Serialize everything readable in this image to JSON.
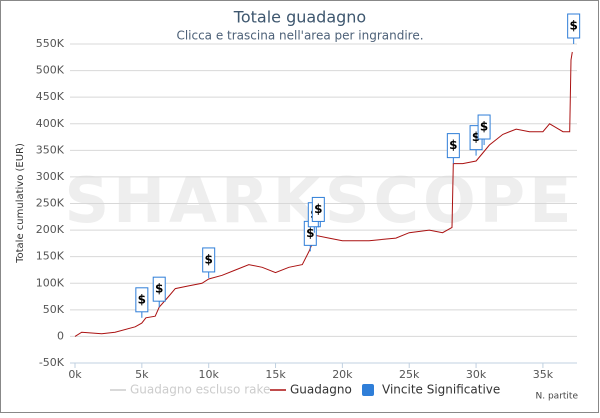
{
  "chart_data": {
    "type": "line",
    "title": "Totale guadagno",
    "subtitle": "Clicca e trascina nell'area per ingrandire.",
    "y_label": "Totale cumulativo (EUR)",
    "x_label": "N. partite",
    "watermark": "SHARKSCOPE",
    "flag_label": "$",
    "xlim": [
      0,
      37400
    ],
    "ylim": [
      -50000,
      550000
    ],
    "xticks": [
      {
        "value": 0,
        "label": "0k"
      },
      {
        "value": 5000,
        "label": "5k"
      },
      {
        "value": 10000,
        "label": "10k"
      },
      {
        "value": 15000,
        "label": "15k"
      },
      {
        "value": 20000,
        "label": "20k"
      },
      {
        "value": 25000,
        "label": "25k"
      },
      {
        "value": 30000,
        "label": "30k"
      },
      {
        "value": 35000,
        "label": "35k"
      }
    ],
    "yticks": [
      {
        "value": -50000,
        "label": "-50K"
      },
      {
        "value": 0,
        "label": "0"
      },
      {
        "value": 50000,
        "label": "50K"
      },
      {
        "value": 100000,
        "label": "100K"
      },
      {
        "value": 150000,
        "label": "150K"
      },
      {
        "value": 200000,
        "label": "200K"
      },
      {
        "value": 250000,
        "label": "250K"
      },
      {
        "value": 300000,
        "label": "300K"
      },
      {
        "value": 350000,
        "label": "350K"
      },
      {
        "value": 400000,
        "label": "400K"
      },
      {
        "value": 450000,
        "label": "450K"
      },
      {
        "value": 500000,
        "label": "500K"
      },
      {
        "value": 550000,
        "label": "550K"
      }
    ],
    "grid": true,
    "legend": "bottom",
    "series": [
      {
        "name": "Guadagno escluso rake",
        "color": "#cccccc",
        "hidden": true,
        "x": [],
        "values": []
      },
      {
        "name": "Guadagno",
        "color": "#aa1111",
        "x": [
          0,
          500,
          2000,
          3000,
          4500,
          5000,
          5300,
          6000,
          6300,
          7000,
          7500,
          8500,
          9500,
          10000,
          11000,
          12000,
          13000,
          14000,
          15000,
          16000,
          17000,
          17500,
          18000,
          19000,
          20000,
          22000,
          24000,
          25000,
          26500,
          27500,
          28200,
          28300,
          29000,
          30000,
          30500,
          31000,
          32000,
          33000,
          34000,
          35000,
          35500,
          36500,
          37000,
          37100,
          37200
        ],
        "values": [
          0,
          8000,
          5000,
          8000,
          18000,
          25000,
          35000,
          38000,
          55000,
          75000,
          90000,
          95000,
          100000,
          108000,
          115000,
          125000,
          135000,
          130000,
          120000,
          130000,
          135000,
          160000,
          190000,
          185000,
          180000,
          180000,
          185000,
          195000,
          200000,
          195000,
          205000,
          325000,
          325000,
          330000,
          345000,
          360000,
          380000,
          390000,
          385000,
          385000,
          400000,
          385000,
          385000,
          520000,
          535000
        ]
      },
      {
        "name": "Vincite Significative",
        "color": "#2f7ed8",
        "marker": "flag",
        "x": [
          5000,
          6300,
          10000,
          17600,
          17900,
          18200,
          28300,
          30000,
          30600,
          37300
        ],
        "values": [
          35000,
          55000,
          110000,
          160000,
          195000,
          205000,
          325000,
          340000,
          360000,
          550000
        ]
      }
    ]
  }
}
